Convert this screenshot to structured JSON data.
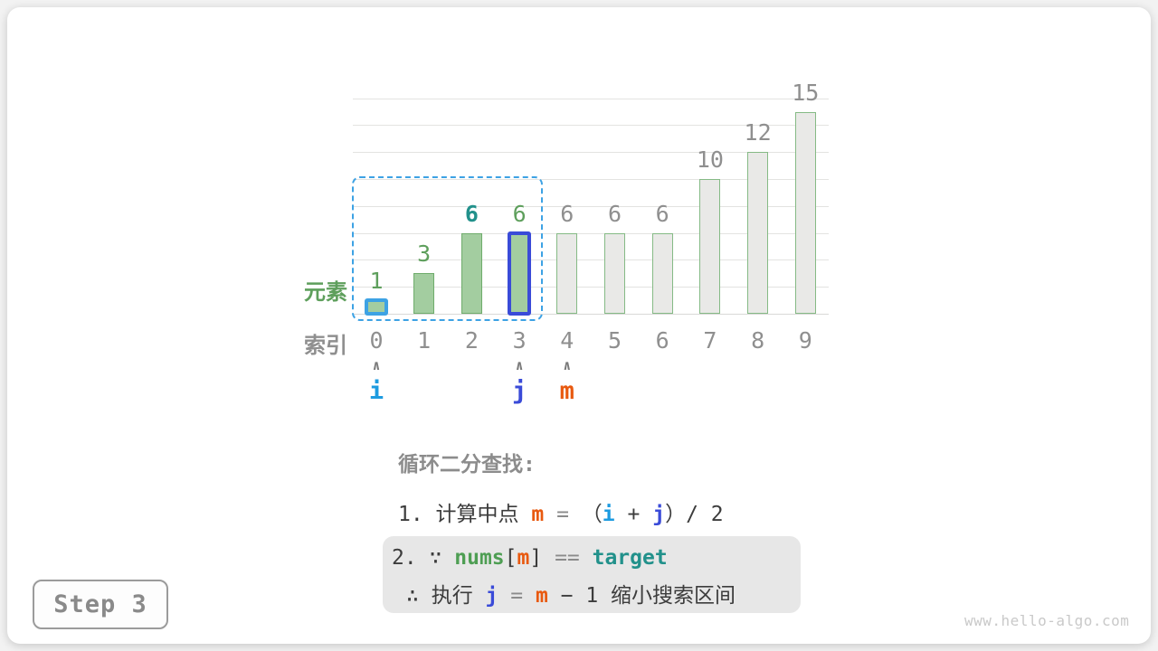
{
  "figure": {
    "step_badge": "Step 3",
    "watermark": "www.hello-algo.com"
  },
  "chart_data": {
    "type": "bar",
    "categories": [
      "0",
      "1",
      "2",
      "3",
      "4",
      "5",
      "6",
      "7",
      "8",
      "9"
    ],
    "values": [
      1,
      3,
      6,
      6,
      6,
      6,
      6,
      10,
      12,
      15
    ],
    "xlabel": "索引",
    "ylabel": "元素",
    "ylim": [
      0,
      16
    ],
    "grid_step": 2,
    "grid": "on",
    "bar_states": [
      "pointer-i",
      "in-range",
      "in-range",
      "pointer-j",
      "excluded",
      "excluded",
      "excluded",
      "excluded",
      "excluded",
      "excluded"
    ],
    "value_label_states": [
      "green",
      "green",
      "teal-bold",
      "green",
      "gray",
      "gray",
      "gray",
      "gray",
      "gray",
      "gray"
    ],
    "search_range": {
      "from_index": 0,
      "to_index": 3
    },
    "pointers": [
      {
        "name": "i",
        "index": 0,
        "color": "blue"
      },
      {
        "name": "j",
        "index": 3,
        "color": "indigo"
      },
      {
        "name": "m",
        "index": 4,
        "color": "orange"
      }
    ],
    "caret_glyph": "∧"
  },
  "caption": {
    "title": "循环二分查找:",
    "line1": {
      "segments": [
        {
          "text": "1. 计算中点 ",
          "color": "dark"
        },
        {
          "text": "m",
          "color": "orange",
          "bold": true
        },
        {
          "text": " = ",
          "color": "op"
        },
        {
          "text": "（",
          "color": "dark"
        },
        {
          "text": "i",
          "color": "blue",
          "bold": true
        },
        {
          "text": " + ",
          "color": "dark"
        },
        {
          "text": "j",
          "color": "indigo",
          "bold": true
        },
        {
          "text": "）/ 2",
          "color": "dark"
        }
      ]
    },
    "box": {
      "line1": {
        "segments": [
          {
            "text": "2. ∵ ",
            "color": "dark"
          },
          {
            "text": "nums",
            "color": "green",
            "bold": true
          },
          {
            "text": "[",
            "color": "dark"
          },
          {
            "text": "m",
            "color": "orange",
            "bold": true
          },
          {
            "text": "] ",
            "color": "dark"
          },
          {
            "text": "== ",
            "color": "op"
          },
          {
            "text": "target",
            "color": "teal",
            "bold": true
          }
        ]
      },
      "line2": {
        "segments": [
          {
            "text": "∴ 执行 ",
            "color": "dark"
          },
          {
            "text": "j",
            "color": "indigo",
            "bold": true
          },
          {
            "text": " = ",
            "color": "op"
          },
          {
            "text": "m",
            "color": "orange",
            "bold": true
          },
          {
            "text": " − 1 缩小搜索区间",
            "color": "dark"
          }
        ]
      }
    }
  },
  "colors": {
    "bar_green_fill": "#a3cda0",
    "bar_green_border": "#6fac6c",
    "bar_gray_fill": "#e9e9e7",
    "bar_gray_border": "#85ba85",
    "i_blue": "#1d9be0",
    "j_indigo": "#3a4bd8",
    "m_orange": "#e8590f",
    "teal": "#22918b",
    "code_green": "#4e9e53",
    "label_green": "#5e9f5c",
    "text_dark": "#3c3c3c",
    "text_gray": "#8f8f8f",
    "operator_gray": "#8b8b8b",
    "range_dash_blue": "#3da2e4",
    "grid": "#e3e3e1",
    "box_bg": "#e7e7e7",
    "watermark": "#c9c9c9"
  }
}
